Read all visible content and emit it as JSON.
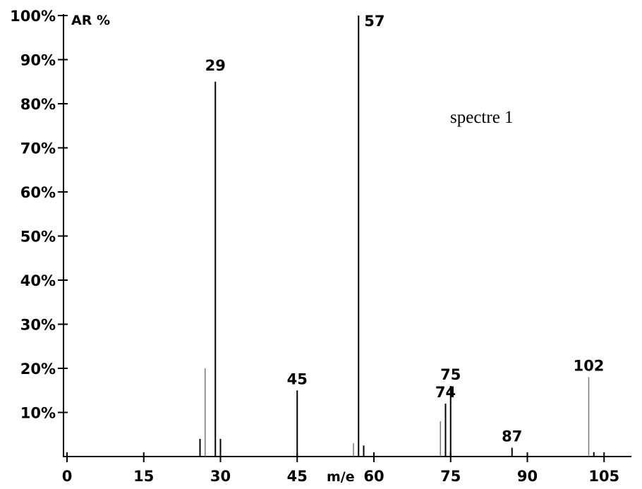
{
  "chart_data": {
    "type": "bar",
    "ylabel": "AR %",
    "xlabel": "m/e",
    "annotation": "spectre 1",
    "xlim": [
      0,
      108
    ],
    "ylim": [
      0,
      100
    ],
    "x_ticks": [
      {
        "value": 0,
        "label": "0"
      },
      {
        "value": 15,
        "label": "15"
      },
      {
        "value": 30,
        "label": "30"
      },
      {
        "value": 45,
        "label": "45"
      },
      {
        "value": 60,
        "label": "60"
      },
      {
        "value": 75,
        "label": "75"
      },
      {
        "value": 90,
        "label": "90"
      },
      {
        "value": 105,
        "label": "105"
      }
    ],
    "y_ticks": [
      {
        "value": 10,
        "label": "10%"
      },
      {
        "value": 20,
        "label": "20%"
      },
      {
        "value": 30,
        "label": "30%"
      },
      {
        "value": 40,
        "label": "40%"
      },
      {
        "value": 50,
        "label": "50%"
      },
      {
        "value": 60,
        "label": "60%"
      },
      {
        "value": 70,
        "label": "70%"
      },
      {
        "value": 80,
        "label": "80%"
      },
      {
        "value": 90,
        "label": "90%"
      },
      {
        "value": 100,
        "label": "100%"
      }
    ],
    "peaks": [
      {
        "mz": 26,
        "value": 4,
        "labeled": false,
        "faint": false
      },
      {
        "mz": 27,
        "value": 20,
        "labeled": false,
        "faint": true
      },
      {
        "mz": 29,
        "value": 85,
        "labeled": true,
        "faint": false
      },
      {
        "mz": 30,
        "value": 4,
        "labeled": false,
        "faint": false
      },
      {
        "mz": 45,
        "value": 15,
        "labeled": true,
        "faint": false
      },
      {
        "mz": 56,
        "value": 3,
        "labeled": false,
        "faint": true
      },
      {
        "mz": 57,
        "value": 100,
        "labeled": true,
        "faint": false
      },
      {
        "mz": 58,
        "value": 2.5,
        "labeled": false,
        "faint": false
      },
      {
        "mz": 73,
        "value": 8,
        "labeled": false,
        "faint": true
      },
      {
        "mz": 74,
        "value": 12,
        "labeled": true,
        "faint": false
      },
      {
        "mz": 75,
        "value": 16,
        "labeled": true,
        "faint": false
      },
      {
        "mz": 87,
        "value": 2,
        "labeled": true,
        "faint": false
      },
      {
        "mz": 102,
        "value": 18,
        "labeled": true,
        "faint": true
      },
      {
        "mz": 103,
        "value": 1,
        "labeled": false,
        "faint": false
      }
    ]
  }
}
